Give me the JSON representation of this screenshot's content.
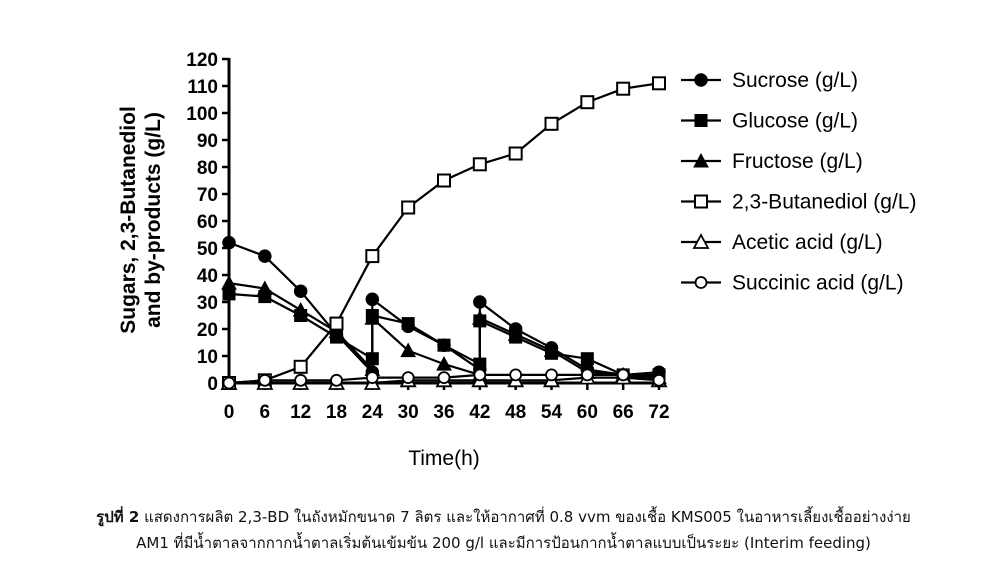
{
  "chart_data": {
    "type": "line",
    "xlabel": "Time(h)",
    "ylabel_line1": "Sugars, 2,3-Butanediol",
    "ylabel_line2": "and by-products (g/L)",
    "xlim": [
      0,
      72
    ],
    "ylim": [
      0,
      120
    ],
    "xticks": [
      0,
      6,
      12,
      18,
      24,
      30,
      36,
      42,
      48,
      54,
      60,
      66,
      72
    ],
    "yticks": [
      0,
      10,
      20,
      30,
      40,
      50,
      60,
      70,
      80,
      90,
      100,
      110,
      120
    ],
    "grid": false,
    "legend_position": "right",
    "series": [
      {
        "name": "Sucrose (g/L)",
        "marker": "circle-filled",
        "x": [
          0,
          6,
          12,
          18,
          24,
          24,
          30,
          36,
          42,
          42,
          48,
          54,
          60,
          66,
          72
        ],
        "y": [
          52,
          47,
          34,
          18,
          4,
          31,
          21,
          14,
          5,
          30,
          20,
          13,
          5,
          3,
          4
        ]
      },
      {
        "name": "Glucose (g/L)",
        "marker": "square-filled",
        "x": [
          0,
          6,
          12,
          18,
          24,
          24,
          30,
          36,
          42,
          42,
          48,
          54,
          60,
          66,
          72
        ],
        "y": [
          33,
          32,
          25,
          17,
          9,
          25,
          22,
          14,
          7,
          23,
          17,
          11,
          9,
          3,
          3
        ]
      },
      {
        "name": "Fructose (g/L)",
        "marker": "triangle-filled",
        "x": [
          0,
          6,
          12,
          18,
          24,
          24,
          30,
          36,
          42,
          42,
          48,
          54,
          60,
          66,
          72
        ],
        "y": [
          37,
          35,
          27,
          19,
          5,
          24,
          12,
          7,
          3,
          24,
          18,
          12,
          4,
          3,
          2
        ]
      },
      {
        "name": "2,3-Butanediol (g/L)",
        "marker": "square-open",
        "x": [
          0,
          6,
          12,
          18,
          24,
          30,
          36,
          42,
          48,
          54,
          60,
          66,
          72
        ],
        "y": [
          0,
          1,
          6,
          22,
          47,
          65,
          75,
          81,
          85,
          96,
          104,
          109,
          111
        ]
      },
      {
        "name": "Acetic acid (g/L)",
        "marker": "triangle-open",
        "x": [
          0,
          6,
          12,
          18,
          24,
          30,
          36,
          42,
          48,
          54,
          60,
          66,
          72
        ],
        "y": [
          0,
          0,
          0,
          0,
          0,
          1,
          1,
          1,
          1,
          1,
          2,
          2,
          1
        ]
      },
      {
        "name": "Succinic acid (g/L)",
        "marker": "circle-open",
        "x": [
          0,
          6,
          12,
          18,
          24,
          30,
          36,
          42,
          48,
          54,
          60,
          66,
          72
        ],
        "y": [
          0,
          1,
          1,
          1,
          2,
          2,
          2,
          3,
          3,
          3,
          3,
          3,
          1
        ]
      }
    ]
  },
  "caption": {
    "fig_label": "รูปที่ 2",
    "line1": "แสดงการผลิต 2,3-BD ในถังหมักขนาด 7 ลิตร และให้อากาศที่ 0.8 vvm ของเชื้อ KMS005 ในอาหารเลี้ยงเชื้ออย่างง่าย",
    "line2": "AM1 ที่มีน้ำตาลจากกากน้ำตาลเริ่มต้นเข้มข้น 200 g/l และมีการป้อนกากน้ำตาลแบบเป็นระยะ (Interim feeding)"
  }
}
